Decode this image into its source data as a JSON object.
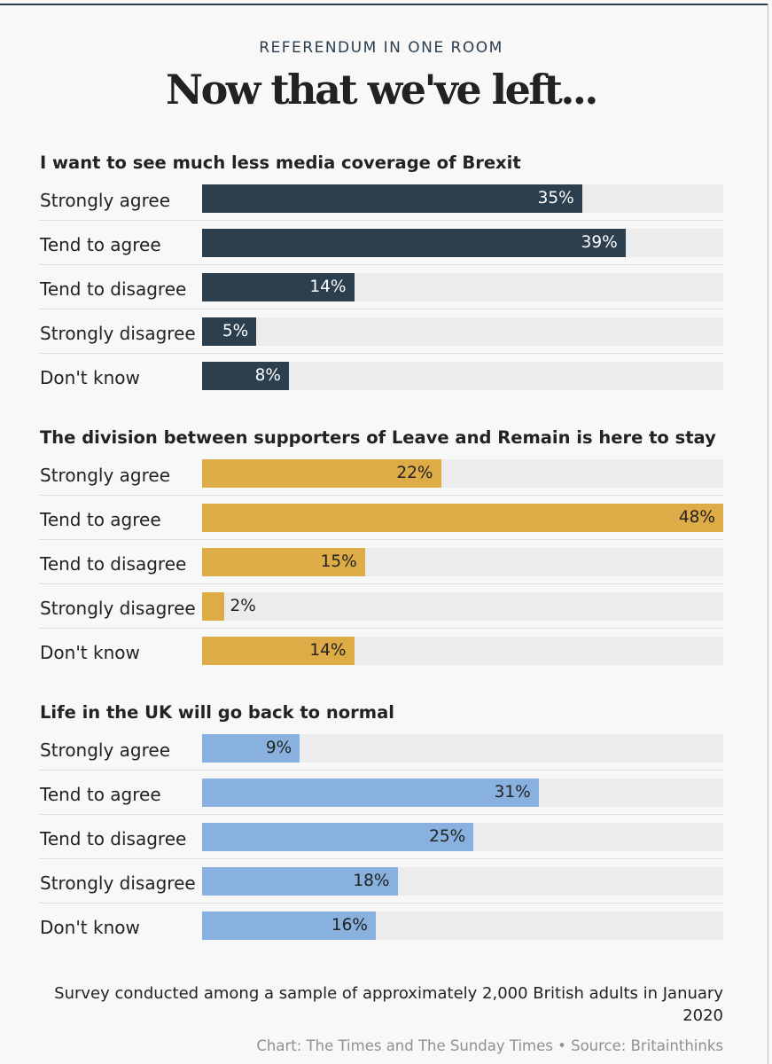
{
  "kicker": "REFERENDUM IN ONE ROOM",
  "headline": "Now that we've left...",
  "chart_data": [
    {
      "type": "bar",
      "title": "I want to see much less media coverage of Brexit",
      "categories": [
        "Strongly agree",
        "Tend to agree",
        "Tend to disagree",
        "Strongly disagree",
        "Don't know"
      ],
      "values": [
        35,
        39,
        14,
        5,
        8
      ],
      "value_labels": [
        "35%",
        "39%",
        "14%",
        "5%",
        "8%"
      ],
      "color": "#2b3f4f",
      "label_color": "#ffffff",
      "xlim": [
        0,
        48
      ]
    },
    {
      "type": "bar",
      "title": "The division between supporters of Leave and Remain is here to stay",
      "categories": [
        "Strongly agree",
        "Tend to agree",
        "Tend to disagree",
        "Strongly disagree",
        "Don't know"
      ],
      "values": [
        22,
        48,
        15,
        2,
        14
      ],
      "value_labels": [
        "22%",
        "48%",
        "15%",
        "2%",
        "14%"
      ],
      "color": "#ddac46",
      "label_color": "#222222",
      "xlim": [
        0,
        48
      ]
    },
    {
      "type": "bar",
      "title": "Life in the UK will go back to normal",
      "categories": [
        "Strongly agree",
        "Tend to agree",
        "Tend to disagree",
        "Strongly disagree",
        "Don't know"
      ],
      "values": [
        9,
        31,
        25,
        18,
        16
      ],
      "value_labels": [
        "9%",
        "31%",
        "25%",
        "18%",
        "16%"
      ],
      "color": "#88b1df",
      "label_color": "#222222",
      "xlim": [
        0,
        48
      ]
    }
  ],
  "note": "Survey conducted among a sample of approximately 2,000 British adults in January 2020",
  "credit": "Chart: The Times and The Sunday Times • Source: Britainthinks"
}
